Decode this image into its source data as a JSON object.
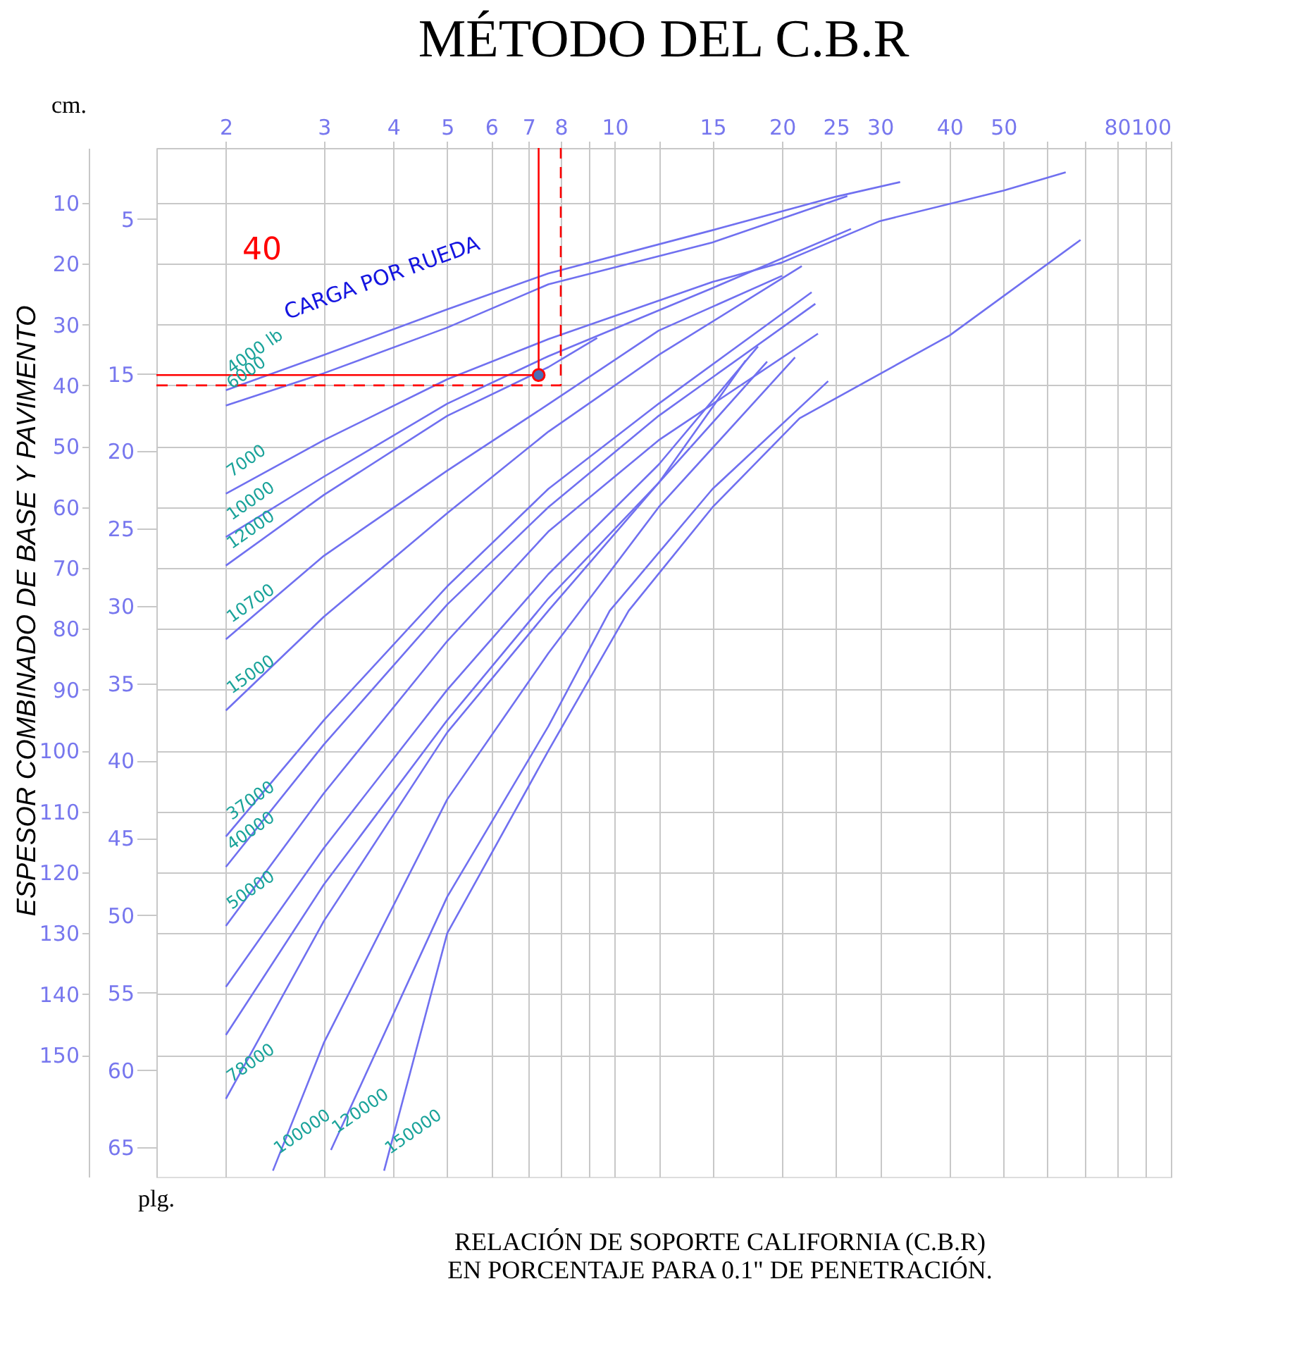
{
  "chart_data": {
    "type": "line",
    "title": "MÉTODO DEL C.B.R",
    "xlabel": "RELACIÓN DE SOPORTE CALIFORNIA (C.B.R)\nEN PORCENTAJE PARA 0.1\" DE PENETRACIÓN.",
    "ylabel": "ESPESOR COMBINADO DE BASE Y PAVIMENTO",
    "y2label": "plg.",
    "annotations": [
      "CARGA POR RUEDA",
      "40",
      "cm."
    ],
    "log": "x",
    "grid": true,
    "xlim": [
      1.5,
      100
    ],
    "xticks": [
      2,
      3,
      4,
      5,
      6,
      7,
      8,
      {
        "value": 9,
        "label": null
      },
      10,
      {
        "value": 12,
        "label": null
      },
      15,
      20,
      25,
      30,
      40,
      50,
      {
        "value": 60,
        "label": null
      },
      {
        "value": 70,
        "label": null
      },
      80,
      {
        "value": 90,
        "label": null
      },
      100
    ],
    "ylim": [
      170,
      1
    ],
    "yticks": [
      10,
      20,
      30,
      40,
      50,
      60,
      70,
      80,
      90,
      100,
      110,
      120,
      130,
      140,
      150
    ],
    "y2lim": [
      66.9,
      0.4
    ],
    "y2ticks": [
      5,
      15,
      20,
      25,
      30,
      35,
      40,
      45,
      50,
      55,
      60,
      65
    ],
    "series": [
      {
        "name": "4000 lb",
        "color": "#7070f0",
        "x": [
          2,
          3,
          5,
          7.6,
          15,
          25,
          32.6
        ],
        "values": [
          40.8,
          35,
          27.5,
          21.6,
          14.5,
          9,
          6.6
        ]
      },
      {
        "name": "6000",
        "color": "#7070f0",
        "x": [
          2,
          3,
          5,
          7.6,
          15,
          26.2
        ],
        "values": [
          43.3,
          38,
          30.5,
          23.4,
          16.5,
          8.9
        ]
      },
      {
        "name": "7000",
        "color": "#7070f0",
        "x": [
          2,
          3,
          5,
          7.6,
          15,
          20,
          30,
          50,
          64.7
        ],
        "values": [
          57.8,
          49,
          39,
          32.4,
          23,
          19.8,
          13,
          8,
          5.0
        ]
      },
      {
        "name": "10000",
        "color": "#7070f0",
        "x": [
          2,
          3,
          5,
          7.6,
          15,
          26.6
        ],
        "values": [
          64.9,
          55,
          43,
          35.2,
          24,
          14.3
        ]
      },
      {
        "name": "12000",
        "color": "#7070f0",
        "x": [
          2,
          3,
          5,
          7.6,
          9.3
        ],
        "values": [
          69.6,
          58,
          45,
          37,
          32.2
        ]
      },
      {
        "name": "10700",
        "color": "#7070f0",
        "x": [
          2,
          3,
          5,
          7.6,
          12,
          20
        ],
        "values": [
          81.7,
          68,
          54,
          43.1,
          31,
          22
        ]
      },
      {
        "name": "15000",
        "color": "#7070f0",
        "x": [
          2,
          3,
          5,
          7.6,
          12,
          21.7
        ],
        "values": [
          93.4,
          78,
          61,
          47.6,
          35,
          20.4
        ]
      },
      {
        "name": "37000",
        "color": "#7070f0",
        "x": [
          2,
          3,
          5,
          7.6,
          12,
          22.6
        ],
        "values": [
          114.1,
          95,
          73,
          57,
          43,
          24.7
        ]
      },
      {
        "name": "40000",
        "color": "#7070f0",
        "x": [
          2,
          3,
          5,
          7.6,
          12,
          22.95
        ],
        "values": [
          119.1,
          99,
          76,
          60,
          45,
          26.6
        ]
      },
      {
        "name": "50000",
        "color": "#7070f0",
        "x": [
          2,
          3,
          5,
          7.6,
          12,
          23.2
        ],
        "values": [
          128.8,
          107,
          82,
          64,
          49,
          31.5
        ]
      },
      {
        "color": "#7070f0",
        "x": [
          2,
          3,
          5,
          7.6,
          12,
          18.1
        ],
        "values": [
          138.8,
          116,
          90,
          71,
          53,
          33.6
        ]
      },
      {
        "color": "#7070f0",
        "x": [
          2,
          3,
          5,
          7.6,
          12,
          17.2
        ],
        "values": [
          146.7,
          122,
          95,
          75,
          56,
          35.9
        ]
      },
      {
        "name": "78000",
        "color": "#7070f0",
        "x": [
          2,
          3,
          5,
          7.6,
          12,
          18.8
        ],
        "values": [
          157.2,
          128,
          97,
          77,
          56,
          36.1
        ]
      },
      {
        "name": "100000",
        "color": "#7070f0",
        "x": [
          2.43,
          3,
          5,
          7.6,
          12,
          21.1
        ],
        "values": [
          169,
          148,
          108,
          84,
          60,
          35.4
        ]
      },
      {
        "name": "120000",
        "color": "#7070f0",
        "x": [
          3.09,
          5,
          7.6,
          9.8,
          15,
          24.2
        ],
        "values": [
          165.6,
          124,
          96,
          77,
          57,
          39.3
        ]
      },
      {
        "name": "150000",
        "color": "#7070f0",
        "x": [
          3.85,
          5,
          7.6,
          10.6,
          15,
          21.5,
          40,
          68.8
        ],
        "values": [
          169,
          130,
          100,
          77,
          60,
          45.4,
          31.8,
          16.1
        ]
      },
      {
        "type": "line",
        "color": "#ff0000",
        "line_style": "dashed",
        "x": [
          1.5,
          8,
          8
        ],
        "values": [
          40,
          40,
          1
        ]
      },
      {
        "type": "line",
        "color": "#ff0000",
        "x": [
          1.5,
          7.3,
          7.3
        ],
        "values": [
          38.3,
          38.3,
          1
        ]
      },
      {
        "type": "scatter",
        "color": "#4a6fb5",
        "x": [
          7.3
        ],
        "values": [
          38.3
        ]
      }
    ]
  }
}
